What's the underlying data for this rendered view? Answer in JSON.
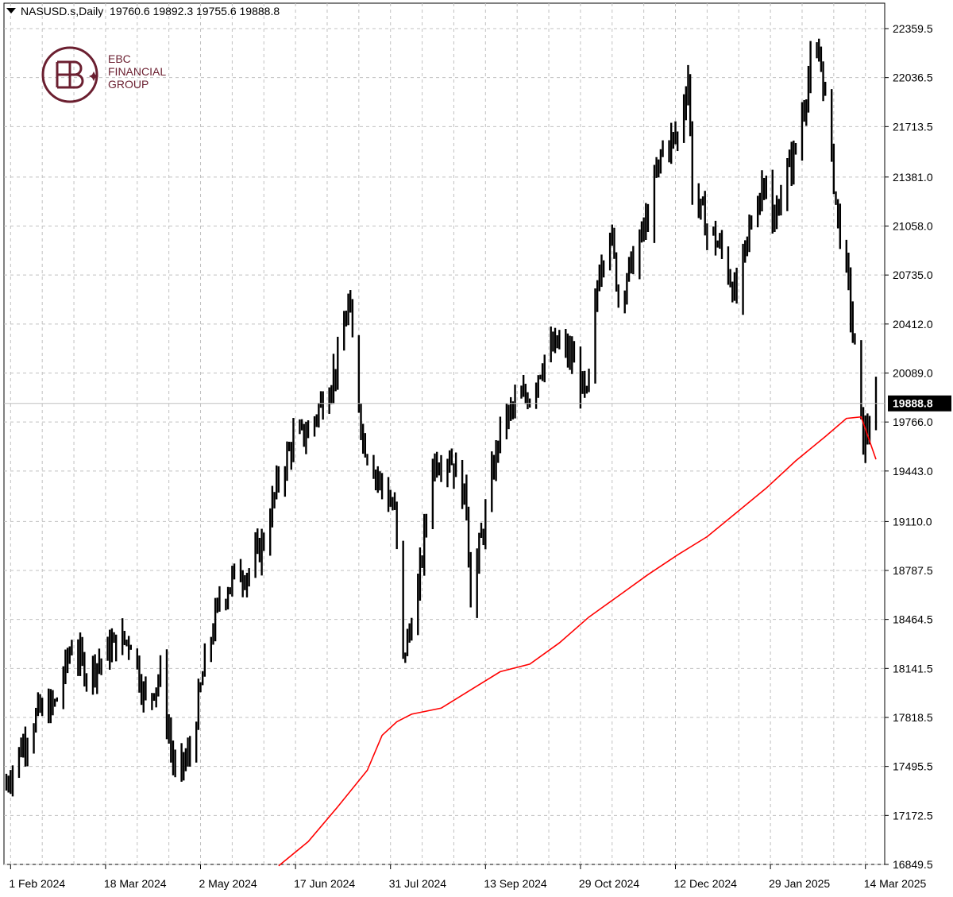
{
  "header": {
    "symbol": "NASUSD.s,Daily",
    "ohlc": "19760.6 19892.3 19755.6 19888.8"
  },
  "logo": {
    "line1": "EBC",
    "line2": "FINANCIAL",
    "line3": "GROUP"
  },
  "colors": {
    "bars": "#000000",
    "moving_average": "#ff0000",
    "grid": "#c0c0c0",
    "current_price_line": "#c0c0c0",
    "price_label_bg": "#000000",
    "brand": "#6b1f30"
  },
  "chart_data": {
    "type": "ohlc",
    "title": "NASUSD.s,Daily",
    "current_price": 19888.8,
    "current_price_label": "19888.8",
    "ylim": [
      16849.5,
      22359.5
    ],
    "y_ticks": [
      "22359.5",
      "22036.5",
      "21713.5",
      "21381.0",
      "21058.0",
      "20735.0",
      "20412.0",
      "20089.0",
      "19766.0",
      "19443.0",
      "19110.0",
      "18787.5",
      "18464.5",
      "18141.5",
      "17818.5",
      "17495.5",
      "17172.5",
      "16849.5"
    ],
    "x_ticks": [
      "1 Feb 2024",
      "18 Mar 2024",
      "2 May 2024",
      "17 Jun 2024",
      "31 Jul 2024",
      "13 Sep 2024",
      "29 Oct 2024",
      "12 Dec 2024",
      "29 Jan 2025",
      "14 Mar 2025"
    ],
    "grid": true,
    "series": [
      {
        "kind": "price_bars",
        "x_start": "2024-01-30",
        "x_end": "2025-03-17",
        "anchors_date": [
          "2024-01-30",
          "2024-02-06",
          "2024-02-14",
          "2024-02-22",
          "2024-03-01",
          "2024-03-08",
          "2024-03-15",
          "2024-03-22",
          "2024-03-29",
          "2024-04-05",
          "2024-04-12",
          "2024-04-19",
          "2024-04-26",
          "2024-05-03",
          "2024-05-10",
          "2024-05-17",
          "2024-05-24",
          "2024-05-31",
          "2024-06-07",
          "2024-06-14",
          "2024-06-21",
          "2024-06-28",
          "2024-07-05",
          "2024-07-10",
          "2024-07-17",
          "2024-07-24",
          "2024-08-01",
          "2024-08-05",
          "2024-08-12",
          "2024-08-19",
          "2024-08-27",
          "2024-09-04",
          "2024-09-06",
          "2024-09-13",
          "2024-09-20",
          "2024-09-27",
          "2024-10-04",
          "2024-10-11",
          "2024-10-18",
          "2024-10-25",
          "2024-10-31",
          "2024-11-06",
          "2024-11-11",
          "2024-11-15",
          "2024-11-22",
          "2024-11-29",
          "2024-12-06",
          "2024-12-13",
          "2024-12-18",
          "2024-12-20",
          "2024-12-27",
          "2025-01-03",
          "2025-01-10",
          "2025-01-17",
          "2025-01-24",
          "2025-01-27",
          "2025-01-31",
          "2025-02-07",
          "2025-02-14",
          "2025-02-19",
          "2025-02-27",
          "2025-03-04",
          "2025-03-11",
          "2025-03-17"
        ],
        "anchors_close": [
          17390,
          17620,
          17850,
          17900,
          18300,
          18120,
          18200,
          18320,
          18330,
          17920,
          18100,
          17430,
          17580,
          18170,
          18590,
          18750,
          18780,
          18990,
          19390,
          19650,
          19700,
          19920,
          20150,
          20550,
          19650,
          19400,
          19180,
          18200,
          18650,
          19500,
          19550,
          19230,
          18620,
          19150,
          19720,
          19880,
          19950,
          20200,
          20280,
          20160,
          19900,
          20800,
          21050,
          20600,
          20830,
          21120,
          21580,
          21650,
          22050,
          21300,
          21050,
          20890,
          20580,
          21100,
          21420,
          21000,
          21300,
          21560,
          22110,
          22150,
          21100,
          20650,
          19640,
          19888.8
        ],
        "swing": 300
      },
      {
        "name": "",
        "kind": "moving_average",
        "points_date": [
          "2024-06-07",
          "2024-06-21",
          "2024-07-05",
          "2024-07-19",
          "2024-07-26",
          "2024-08-02",
          "2024-08-09",
          "2024-08-23",
          "2024-09-06",
          "2024-09-20",
          "2024-10-04",
          "2024-10-18",
          "2024-11-01",
          "2024-11-15",
          "2024-11-29",
          "2024-12-13",
          "2024-12-27",
          "2025-01-10",
          "2025-01-24",
          "2025-02-07",
          "2025-02-21",
          "2025-03-03",
          "2025-03-10",
          "2025-03-17"
        ],
        "points_value": [
          16840,
          17000,
          17230,
          17470,
          17700,
          17790,
          17840,
          17880,
          18000,
          18120,
          18170,
          18310,
          18480,
          18620,
          18760,
          18890,
          19010,
          19170,
          19330,
          19510,
          19670,
          19790,
          19800,
          19520
        ]
      }
    ]
  }
}
